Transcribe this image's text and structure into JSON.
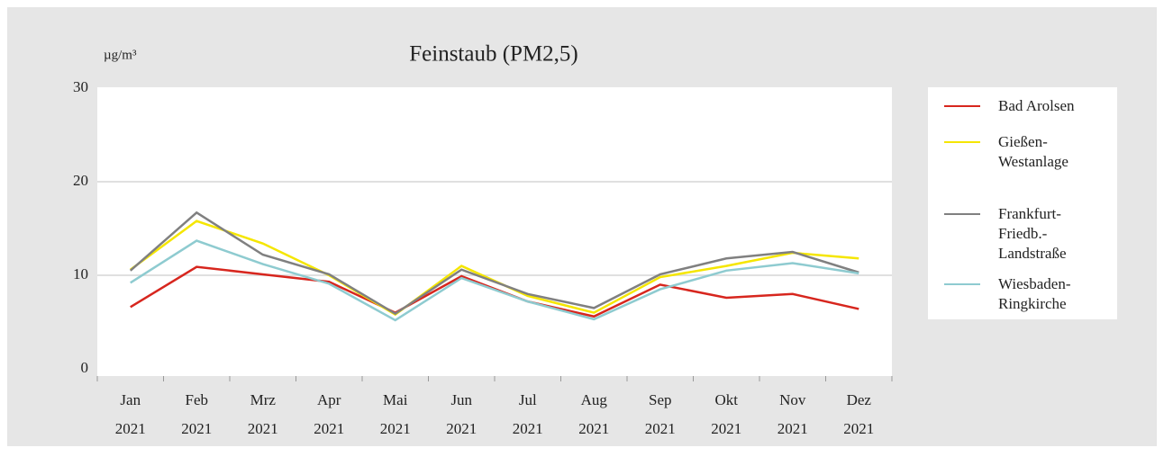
{
  "chart_data": {
    "type": "line",
    "title": "Feinstaub (PM2,5)",
    "y_label": "µg/m³",
    "categories": [
      [
        "Jan",
        "2021"
      ],
      [
        "Feb",
        "2021"
      ],
      [
        "Mrz",
        "2021"
      ],
      [
        "Apr",
        "2021"
      ],
      [
        "Mai",
        "2021"
      ],
      [
        "Jun",
        "2021"
      ],
      [
        "Jul",
        "2021"
      ],
      [
        "Aug",
        "2021"
      ],
      [
        "Sep",
        "2021"
      ],
      [
        "Okt",
        "2021"
      ],
      [
        "Nov",
        "2021"
      ],
      [
        "Dez",
        "2021"
      ]
    ],
    "series": [
      {
        "name": "Bad Arolsen",
        "color": "#d7261e",
        "values": [
          6.6,
          10.9,
          10.1,
          9.3,
          6.0,
          9.9,
          7.2,
          5.6,
          9.0,
          7.6,
          8.0,
          6.4
        ]
      },
      {
        "name": "Gießen-Westanlage",
        "color": "#f5e600",
        "values": [
          10.6,
          15.8,
          13.4,
          10.0,
          5.8,
          11.0,
          7.8,
          6.0,
          9.8,
          11.0,
          12.4,
          11.8
        ]
      },
      {
        "name": "Frankfurt-Friedb.-Landstraße",
        "color": "#808080",
        "values": [
          10.5,
          16.7,
          12.2,
          10.1,
          5.9,
          10.6,
          8.0,
          6.5,
          10.1,
          11.8,
          12.5,
          10.3
        ]
      },
      {
        "name": "Wiesbaden-Ringkirche",
        "color": "#8ecbd0",
        "values": [
          9.2,
          13.7,
          11.2,
          9.1,
          5.2,
          9.7,
          7.2,
          5.3,
          8.5,
          10.5,
          11.3,
          10.2
        ]
      }
    ],
    "ylim": [
      0,
      30
    ],
    "yticks": [
      0,
      10,
      20,
      30
    ],
    "grid": true
  }
}
